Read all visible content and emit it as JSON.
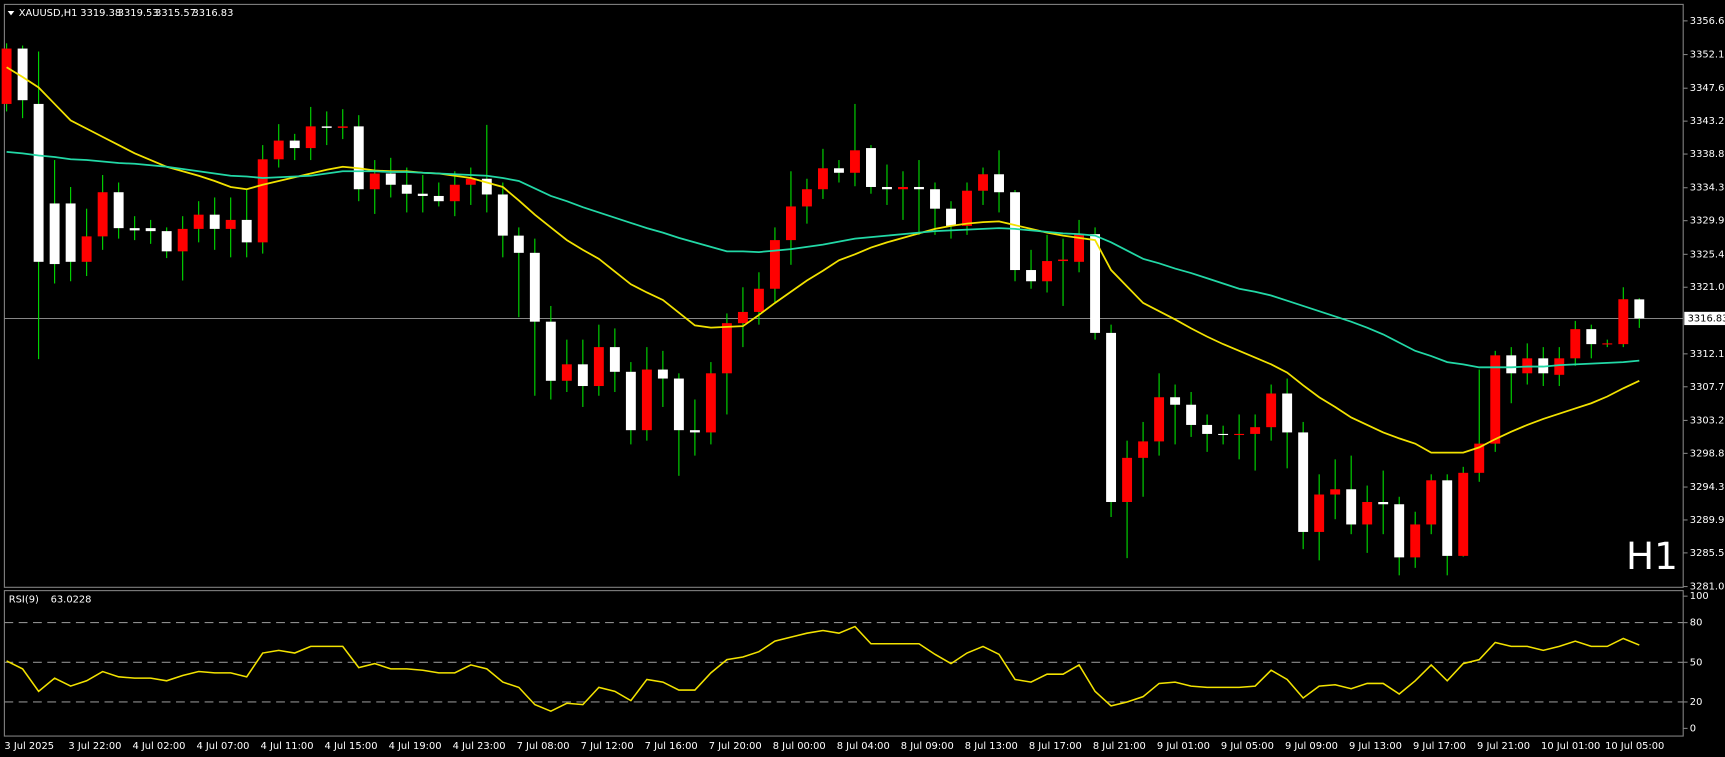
{
  "chart_data": [
    {
      "type": "candlestick",
      "title": "XAUUSD,H1",
      "watermark": "H1",
      "watermark_color": "#e00000",
      "bull_color": "#ff0000",
      "bear_color": "#ffffff",
      "wick_color": "#00e000",
      "price_line_color": "#9a9a9a",
      "categories": [
        "3 Jul 2025",
        null,
        null,
        null,
        "3 Jul 22:00",
        null,
        null,
        null,
        "4 Jul 02:00",
        null,
        null,
        null,
        "4 Jul 07:00",
        null,
        null,
        null,
        "4 Jul 11:00",
        null,
        null,
        null,
        "4 Jul 15:00",
        null,
        null,
        null,
        "4 Jul 19:00",
        null,
        null,
        null,
        "4 Jul 23:00",
        null,
        null,
        null,
        "7 Jul 08:00",
        null,
        null,
        null,
        "7 Jul 12:00",
        null,
        null,
        null,
        "7 Jul 16:00",
        null,
        null,
        null,
        "7 Jul 20:00",
        null,
        null,
        null,
        "8 Jul 00:00",
        null,
        null,
        null,
        "8 Jul 04:00",
        null,
        null,
        null,
        "8 Jul 09:00",
        null,
        null,
        null,
        "8 Jul 13:00",
        null,
        null,
        null,
        "8 Jul 17:00",
        null,
        null,
        null,
        "8 Jul 21:00",
        null,
        null,
        null,
        "9 Jul 01:00",
        null,
        null,
        null,
        "9 Jul 05:00",
        null,
        null,
        null,
        "9 Jul 09:00",
        null,
        null,
        null,
        "9 Jul 13:00",
        null,
        null,
        null,
        "9 Jul 17:00",
        null,
        null,
        null,
        "9 Jul 21:00",
        null,
        null,
        null,
        "10 Jul 01:00",
        null,
        null,
        null,
        "10 Jul 05:00",
        null,
        null
      ],
      "open": [
        3345.5,
        3352.9,
        3345.5,
        3332.2,
        3332.2,
        3324.4,
        3327.8,
        3333.7,
        3328.9,
        3328.9,
        3328.5,
        3325.8,
        3328.8,
        3330.7,
        3328.8,
        3330.0,
        3327.0,
        3338.1,
        3340.6,
        3339.6,
        3342.5,
        3342.3,
        3342.5,
        3334.1,
        3336.2,
        3334.7,
        3333.5,
        3333.2,
        3332.5,
        3334.7,
        3335.5,
        3333.4,
        3327.9,
        3325.6,
        3316.4,
        3308.5,
        3310.7,
        3307.8,
        3313.0,
        3309.7,
        3301.9,
        3310.0,
        3308.8,
        3301.9,
        3301.6,
        3309.5,
        3316.2,
        3317.7,
        3320.8,
        3327.3,
        3331.8,
        3334.1,
        3336.9,
        3336.3,
        3339.6,
        3334.4,
        3334.1,
        3334.4,
        3334.1,
        3331.5,
        3329.2,
        3333.9,
        3336.1,
        3333.7,
        3323.3,
        3321.8,
        3324.5,
        3324.4,
        3328.1,
        3314.9,
        3292.3,
        3298.2,
        3300.4,
        3306.3,
        3305.3,
        3302.6,
        3301.4,
        3301.3,
        3301.4,
        3302.3,
        3306.8,
        3301.6,
        3288.3,
        3293.3,
        3294.0,
        3289.3,
        3292.3,
        3292.0,
        3284.9,
        3289.3,
        3295.2,
        3285.1,
        3296.2,
        3300.1,
        3311.9,
        3309.5,
        3311.5,
        3309.3,
        3311.5,
        3315.4,
        3313.4,
        3313.4,
        3319.38
      ],
      "high": [
        3353.6,
        3353.3,
        3352.5,
        3338.0,
        3334.4,
        3331.5,
        3336.0,
        3335.0,
        3330.5,
        3330.0,
        3329.0,
        3330.5,
        3332.5,
        3333.0,
        3333.0,
        3334.0,
        3340.0,
        3342.8,
        3341.5,
        3345.1,
        3344.5,
        3344.8,
        3344.0,
        3338.0,
        3338.3,
        3337.0,
        3336.0,
        3335.0,
        3336.5,
        3337.0,
        3342.7,
        3335.0,
        3329.0,
        3327.5,
        3318.5,
        3314.0,
        3314.0,
        3316.0,
        3315.5,
        3311.0,
        3313.0,
        3312.5,
        3309.5,
        3306.0,
        3311.0,
        3317.5,
        3321.0,
        3323.0,
        3329.0,
        3336.5,
        3335.5,
        3339.5,
        3338.0,
        3345.5,
        3340.0,
        3337.4,
        3336.5,
        3338.0,
        3335.0,
        3332.5,
        3335.0,
        3337.0,
        3339.3,
        3334.0,
        3326.0,
        3328.0,
        3327.5,
        3330.0,
        3329.0,
        3316.0,
        3300.5,
        3303.0,
        3309.5,
        3308.0,
        3307.0,
        3304.0,
        3302.5,
        3304.0,
        3304.0,
        3308.0,
        3308.8,
        3303.0,
        3296.0,
        3298.0,
        3298.5,
        3294.5,
        3296.5,
        3293.0,
        3291.0,
        3296.0,
        3296.0,
        3297.0,
        3310.0,
        3312.5,
        3313.0,
        3313.5,
        3313.0,
        3313.0,
        3316.5,
        3316.0,
        3314.0,
        3321.0,
        3319.53
      ],
      "low": [
        3344.5,
        3343.6,
        3311.4,
        3321.5,
        3321.8,
        3322.5,
        3326.0,
        3327.5,
        3327.3,
        3326.8,
        3324.9,
        3321.9,
        3327.0,
        3326.0,
        3325.0,
        3325.0,
        3325.5,
        3337.0,
        3338.0,
        3338.0,
        3340.0,
        3340.8,
        3332.5,
        3330.8,
        3333.0,
        3331.0,
        3331.0,
        3331.8,
        3330.5,
        3332.0,
        3331.0,
        3325.0,
        3317.0,
        3306.5,
        3306.0,
        3307.0,
        3305.0,
        3306.5,
        3307.0,
        3300.0,
        3300.5,
        3305.0,
        3295.8,
        3298.5,
        3300.0,
        3304.0,
        3313.0,
        3316.0,
        3319.0,
        3324.0,
        3329.5,
        3332.8,
        3335.0,
        3334.5,
        3333.5,
        3332.0,
        3330.0,
        3328.0,
        3328.0,
        3327.5,
        3328.0,
        3332.0,
        3331.0,
        3321.8,
        3320.8,
        3320.3,
        3318.5,
        3323.0,
        3314.0,
        3290.3,
        3284.8,
        3293.0,
        3298.5,
        3300.0,
        3301.0,
        3299.0,
        3300.0,
        3298.0,
        3296.5,
        3300.5,
        3296.8,
        3286.0,
        3284.5,
        3290.0,
        3288.0,
        3285.5,
        3288.0,
        3282.5,
        3283.5,
        3288.0,
        3282.5,
        3285.0,
        3295.0,
        3299.0,
        3305.5,
        3308.0,
        3307.8,
        3307.8,
        3310.5,
        3311.5,
        3313.0,
        3313.0,
        3315.57
      ],
      "close": [
        3352.9,
        3346.0,
        3324.4,
        3324.1,
        3324.4,
        3327.8,
        3333.7,
        3328.9,
        3328.6,
        3328.5,
        3325.8,
        3328.8,
        3330.7,
        3328.8,
        3330.0,
        3327.0,
        3338.1,
        3340.6,
        3339.6,
        3342.5,
        3342.3,
        3342.5,
        3334.1,
        3336.2,
        3334.7,
        3333.5,
        3333.2,
        3332.5,
        3334.7,
        3335.5,
        3333.4,
        3327.9,
        3325.6,
        3316.4,
        3308.5,
        3310.7,
        3307.8,
        3313.0,
        3309.7,
        3301.9,
        3310.0,
        3308.8,
        3301.9,
        3301.6,
        3309.5,
        3316.2,
        3317.7,
        3320.8,
        3327.3,
        3331.8,
        3334.1,
        3336.9,
        3336.3,
        3339.3,
        3334.4,
        3334.1,
        3334.4,
        3334.1,
        3331.5,
        3329.2,
        3333.9,
        3336.1,
        3333.7,
        3323.3,
        3321.8,
        3324.5,
        3324.7,
        3328.1,
        3314.9,
        3292.3,
        3298.2,
        3300.4,
        3306.3,
        3305.3,
        3302.6,
        3301.4,
        3301.3,
        3301.4,
        3302.3,
        3306.8,
        3301.6,
        3288.3,
        3293.3,
        3294.0,
        3289.3,
        3292.3,
        3292.0,
        3284.9,
        3289.3,
        3295.2,
        3285.1,
        3296.2,
        3300.1,
        3311.9,
        3309.5,
        3311.5,
        3309.5,
        3311.5,
        3315.4,
        3313.4,
        3313.5,
        3319.4,
        3316.83
      ],
      "series": [
        {
          "color": "#f2e200",
          "values": [
            3350.4,
            3349.1,
            3347.7,
            3345.5,
            3343.3,
            3342.2,
            3341.1,
            3340.0,
            3338.9,
            3338.0,
            3337.1,
            3336.5,
            3335.9,
            3335.2,
            3334.4,
            3334.1,
            3334.7,
            3335.2,
            3335.7,
            3336.2,
            3336.7,
            3337.1,
            3336.9,
            3336.6,
            3336.5,
            3336.5,
            3336.3,
            3336.2,
            3335.9,
            3335.6,
            3335.0,
            3334.4,
            3332.6,
            3330.7,
            3329.0,
            3327.3,
            3326.0,
            3324.8,
            3323.1,
            3321.4,
            3320.3,
            3319.3,
            3317.6,
            3315.9,
            3315.6,
            3315.7,
            3315.8,
            3317.3,
            3318.9,
            3320.4,
            3321.9,
            3323.2,
            3324.6,
            3325.4,
            3326.3,
            3327.0,
            3327.6,
            3328.2,
            3328.8,
            3329.2,
            3329.5,
            3329.7,
            3329.8,
            3329.3,
            3328.8,
            3328.3,
            3327.9,
            3327.6,
            3327.3,
            3323.3,
            3321.1,
            3318.9,
            3317.8,
            3316.7,
            3315.5,
            3314.4,
            3313.4,
            3312.5,
            3311.6,
            3310.7,
            3309.6,
            3307.9,
            3306.3,
            3305.0,
            3303.6,
            3302.6,
            3301.6,
            3300.8,
            3300.1,
            3298.9,
            3298.9,
            3298.9,
            3299.6,
            3300.7,
            3301.7,
            3302.6,
            3303.4,
            3304.1,
            3304.8,
            3305.5,
            3306.4,
            3307.5,
            3308.5
          ]
        },
        {
          "color": "#22d8a6",
          "values": [
            3339.1,
            3338.9,
            3338.6,
            3338.4,
            3338.1,
            3338.0,
            3337.8,
            3337.6,
            3337.5,
            3337.3,
            3337.1,
            3336.8,
            3336.5,
            3336.2,
            3335.9,
            3335.8,
            3335.6,
            3335.7,
            3335.8,
            3335.9,
            3336.2,
            3336.5,
            3336.5,
            3336.5,
            3336.4,
            3336.4,
            3336.3,
            3336.2,
            3336.1,
            3336.0,
            3335.9,
            3335.6,
            3335.2,
            3334.2,
            3333.2,
            3332.5,
            3331.7,
            3331.0,
            3330.3,
            3329.6,
            3328.9,
            3328.3,
            3327.6,
            3327.0,
            3326.4,
            3325.8,
            3325.8,
            3325.7,
            3325.9,
            3326.1,
            3326.4,
            3326.7,
            3327.1,
            3327.5,
            3327.7,
            3327.9,
            3328.1,
            3328.3,
            3328.5,
            3328.6,
            3328.7,
            3328.8,
            3328.9,
            3328.8,
            3328.6,
            3328.4,
            3328.2,
            3328.1,
            3327.9,
            3327.0,
            3325.9,
            3324.8,
            3324.2,
            3323.5,
            3322.9,
            3322.2,
            3321.5,
            3320.8,
            3320.4,
            3319.9,
            3319.2,
            3318.5,
            3317.8,
            3317.1,
            3316.4,
            3315.6,
            3314.7,
            3313.6,
            3312.5,
            3311.8,
            3311.0,
            3310.7,
            3310.3,
            3310.3,
            3310.3,
            3310.4,
            3310.4,
            3310.6,
            3310.7,
            3310.8,
            3310.9,
            3311.0,
            3311.2
          ]
        }
      ],
      "ylim": [
        3280.9,
        3358.8
      ],
      "yticks": [
        {
          "value": 3356.6,
          "label": "3356.60"
        },
        {
          "value": 3352.1,
          "label": "3352.10"
        },
        {
          "value": 3347.6,
          "label": "3347.60"
        },
        {
          "value": 3343.2,
          "label": "3343.20"
        },
        {
          "value": 3338.8,
          "label": "3338.80"
        },
        {
          "value": 3334.3,
          "label": "3334.30"
        },
        {
          "value": 3329.9,
          "label": "3329.90"
        },
        {
          "value": 3325.4,
          "label": "3325.40"
        },
        {
          "value": 3321.0,
          "label": "3321.00"
        },
        {
          "value": 3312.1,
          "label": "3312.10"
        },
        {
          "value": 3307.7,
          "label": "3307.70"
        },
        {
          "value": 3303.2,
          "label": "3303.20"
        },
        {
          "value": 3298.8,
          "label": "3298.80"
        },
        {
          "value": 3294.3,
          "label": "3294.30"
        },
        {
          "value": 3289.9,
          "label": "3289.90"
        },
        {
          "value": 3285.5,
          "label": "3285.50"
        },
        {
          "value": 3281.0,
          "label": "3281.00"
        }
      ]
    },
    {
      "type": "line",
      "level_color": "#8c8c8c",
      "series": [
        {
          "name": "RSI(9)",
          "color": "#f2e200",
          "values": [
            51,
            45,
            28,
            38,
            32,
            36,
            43,
            39,
            38,
            38,
            36,
            40,
            43,
            42,
            42,
            39,
            57,
            59,
            57,
            62,
            62,
            62,
            46,
            49,
            45,
            45,
            44,
            42,
            42,
            48,
            45,
            35,
            31,
            18,
            13,
            19,
            18,
            31,
            28,
            21,
            37,
            35,
            29,
            29,
            42,
            52,
            54,
            58,
            66,
            69,
            72,
            74,
            72,
            77,
            64,
            64,
            64,
            64,
            56,
            49,
            57,
            62,
            56,
            37,
            35,
            41,
            41,
            48,
            28,
            17,
            20,
            24,
            34,
            35,
            32,
            31,
            31,
            31,
            32,
            44,
            37,
            23,
            32,
            33,
            30,
            34,
            34,
            26,
            36,
            48,
            36,
            49,
            52,
            65,
            62,
            62,
            59,
            62,
            66,
            62,
            62,
            68,
            63.0228
          ]
        }
      ],
      "ylim": [
        -5.8,
        104.2
      ],
      "yticks": [
        100,
        80,
        50,
        20,
        0
      ],
      "levels": [
        80,
        50,
        20
      ]
    }
  ]
}
